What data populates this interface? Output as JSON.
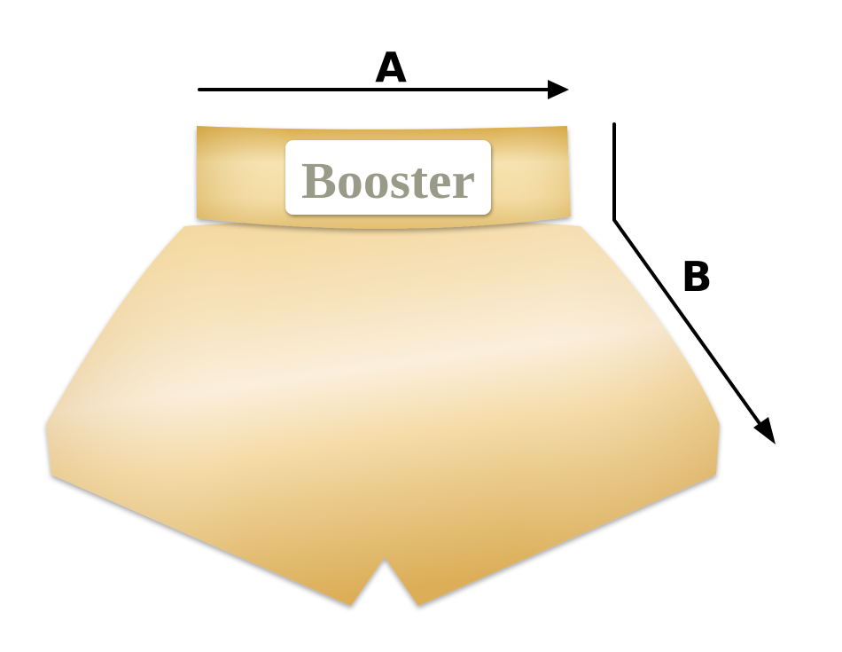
{
  "dimensions": {
    "a_label": "A",
    "b_label": "B"
  },
  "shorts": {
    "brand_text": "Booster"
  },
  "colors": {
    "background": "#ffffff",
    "arrow": "#000000",
    "gold_dark": "#d6a640",
    "gold_light": "#fbeed6",
    "gold_mid": "#f3d79a",
    "logo_text": "#9a9a88",
    "logo_box": "#ffffff"
  }
}
